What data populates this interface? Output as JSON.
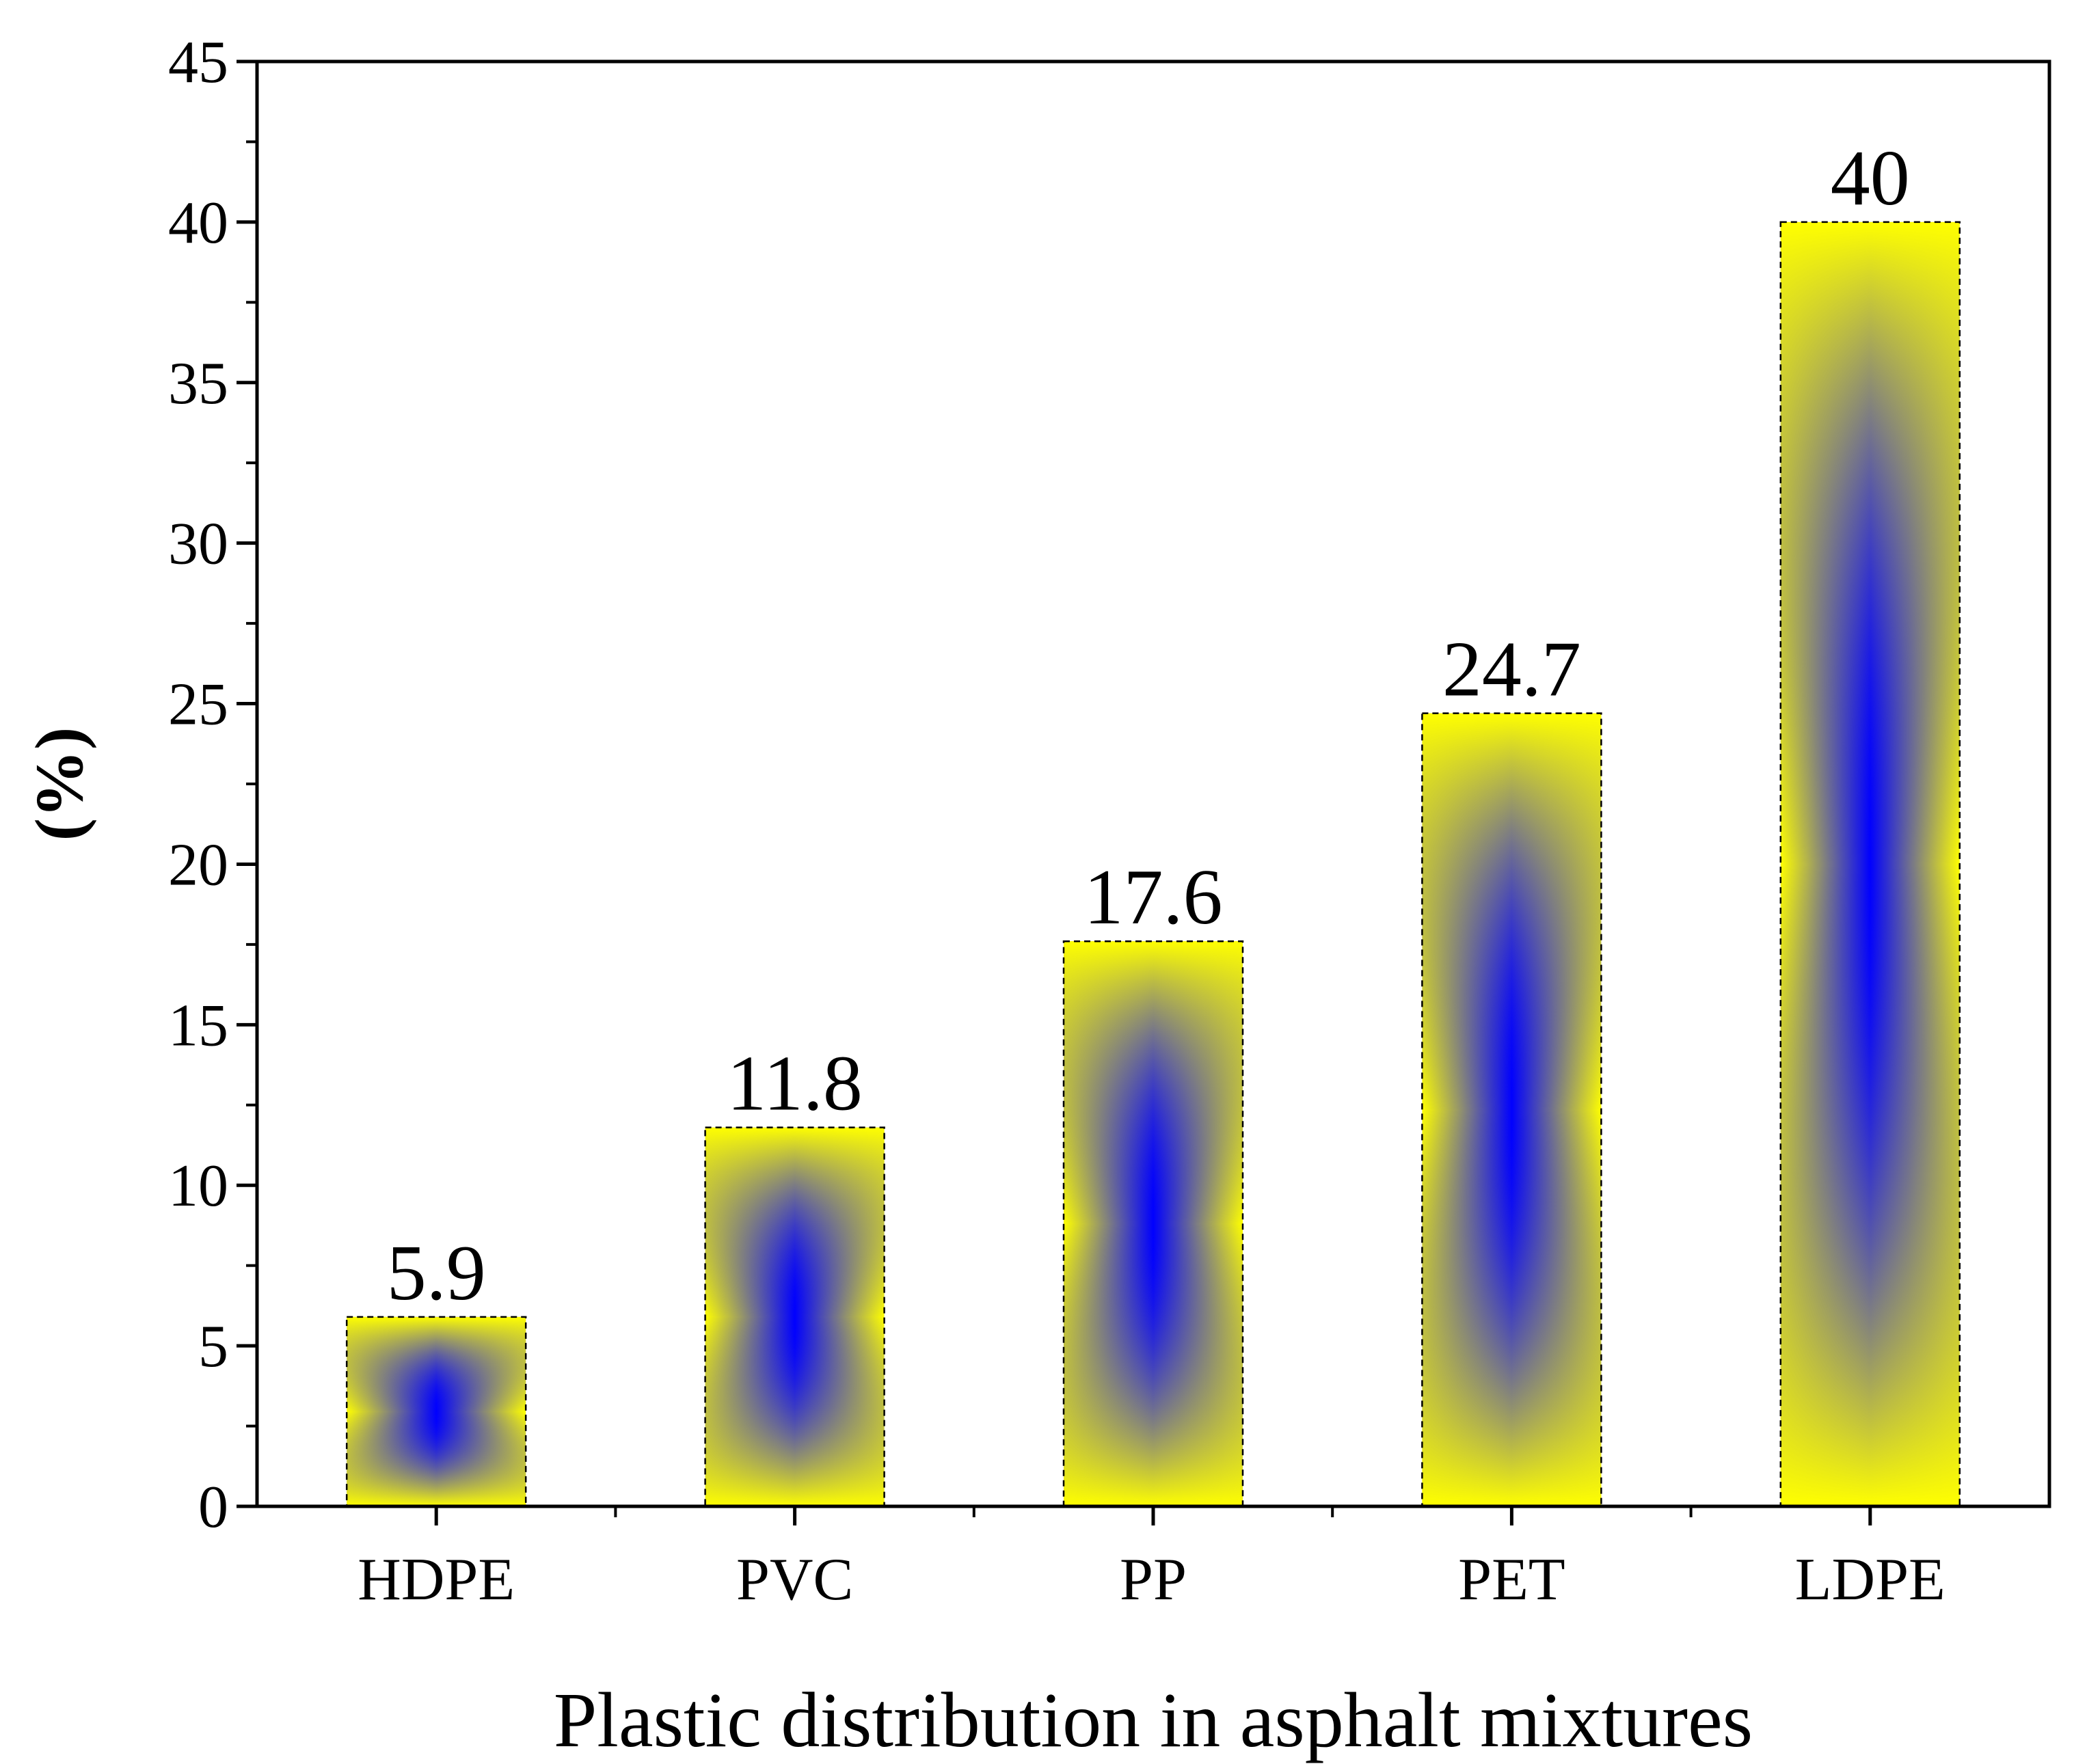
{
  "chart_data": {
    "type": "bar",
    "title": "",
    "xlabel": "Plastic distribution in asphalt mixtures",
    "ylabel": "(%)",
    "categories": [
      "HDPE",
      "PVC",
      "PP",
      "PET",
      "LDPE"
    ],
    "values": [
      5.9,
      11.8,
      17.6,
      24.7,
      40
    ],
    "value_labels": [
      "5.9",
      "11.8",
      "17.6",
      "24.7",
      "40"
    ],
    "ylim": [
      0,
      45
    ],
    "yticks": [
      0,
      5,
      10,
      15,
      20,
      25,
      30,
      35,
      40,
      45
    ],
    "ytick_labels": [
      "0",
      "5",
      "10",
      "15",
      "20",
      "25",
      "30",
      "35",
      "40",
      "45"
    ],
    "grid": false,
    "bar_colors": {
      "edge": "#ffff00",
      "center": "#0000ff",
      "outline": "#000000"
    }
  }
}
